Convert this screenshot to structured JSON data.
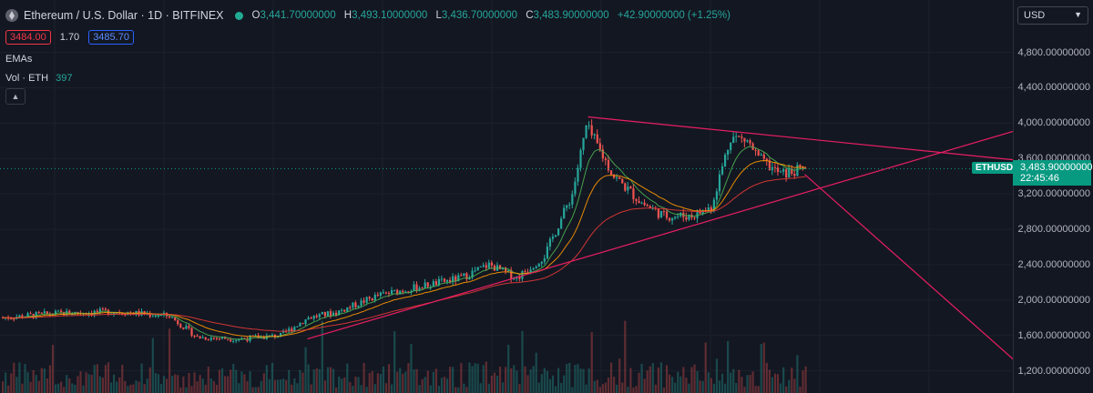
{
  "header": {
    "title": "Ethereum / U.S. Dollar · 1D · BITFINEX",
    "ohlc": {
      "o_label": "O",
      "o": "3,441.70000000",
      "h_label": "H",
      "h": "3,493.10000000",
      "l_label": "L",
      "l": "3,436.70000000",
      "c_label": "C",
      "c": "3,483.90000000",
      "change": "+42.90000000 (+1.25%)"
    },
    "sell_price": "3484.00",
    "spread": "1.70",
    "buy_price": "3485.70",
    "indicator_emas": "EMAs",
    "volume_label": "Vol · ETH",
    "volume_value": "397"
  },
  "axis": {
    "currency": "USD",
    "ticks": [
      "4,800.00000000",
      "4,400.00000000",
      "4,000.00000000",
      "3,600.00000000",
      "3,200.00000000",
      "2,800.00000000",
      "2,400.00000000",
      "2,000.00000000",
      "1,600.00000000",
      "1,200.00000000"
    ],
    "last_price": "3,483.90000000",
    "countdown": "22:45:46",
    "symbol_label": "ETHUSD"
  },
  "colors": {
    "background": "#131722",
    "up": "#26a69a",
    "down": "#ef5350",
    "trendline": "#e91e63",
    "ema_fast": "#ff9800",
    "ema_mid": "#4caf50",
    "ema_slow": "#e53935"
  },
  "chart_data": {
    "type": "candlestick",
    "y_range": [
      1050,
      5000
    ],
    "candle_count": 290,
    "close_path": [
      [
        0,
        1800
      ],
      [
        20,
        1850
      ],
      [
        40,
        1870
      ],
      [
        60,
        1820
      ],
      [
        70,
        1580
      ],
      [
        85,
        1560
      ],
      [
        100,
        1600
      ],
      [
        110,
        1800
      ],
      [
        120,
        1860
      ],
      [
        135,
        2050
      ],
      [
        150,
        2150
      ],
      [
        165,
        2250
      ],
      [
        175,
        2400
      ],
      [
        185,
        2250
      ],
      [
        195,
        2500
      ],
      [
        205,
        3200
      ],
      [
        210,
        3950
      ],
      [
        213,
        3800
      ],
      [
        220,
        3400
      ],
      [
        230,
        3100
      ],
      [
        238,
        2950
      ],
      [
        248,
        2950
      ],
      [
        255,
        3050
      ],
      [
        262,
        3850
      ],
      [
        268,
        3800
      ],
      [
        272,
        3600
      ],
      [
        280,
        3420
      ],
      [
        289,
        3484
      ]
    ],
    "last_close": 3483.9,
    "trendlines": [
      {
        "name": "descending resistance",
        "from": [
          211,
          4070
        ],
        "to": [
          372,
          3560
        ]
      },
      {
        "name": "ascending support",
        "from": [
          110,
          1560
        ],
        "to": [
          372,
          3980
        ]
      },
      {
        "name": "breakdown projection",
        "from": [
          289,
          3420
        ],
        "to": [
          372,
          1110
        ]
      }
    ]
  }
}
